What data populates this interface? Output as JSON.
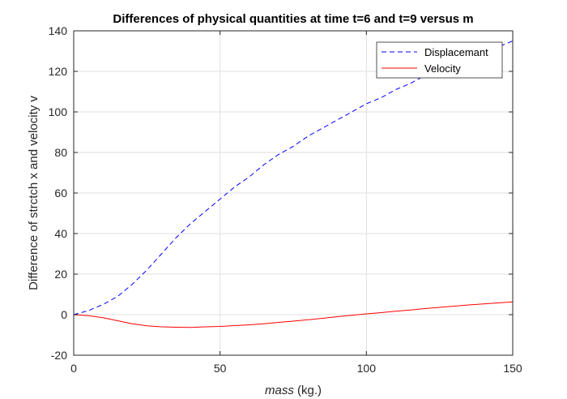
{
  "chart_data": {
    "type": "line",
    "title": "Differences of physical quantities at time t=6 and t=9 versus m",
    "xlabel_italic": "mass",
    "xlabel_rest": " (kg.)",
    "ylabel": "Difference of strctch x and velocity v",
    "xlim": [
      0,
      150
    ],
    "ylim": [
      -20,
      140
    ],
    "xticks": [
      0,
      50,
      100,
      150
    ],
    "yticks": [
      -20,
      0,
      20,
      40,
      60,
      80,
      100,
      120,
      140
    ],
    "xtick_labels": [
      "0",
      "50",
      "100",
      "150"
    ],
    "ytick_labels": [
      "-20",
      "0",
      "20",
      "40",
      "60",
      "80",
      "100",
      "120",
      "140"
    ],
    "grid": true,
    "legend_position": "top-right",
    "series": [
      {
        "name": "Displacemant",
        "color": "#0000ff",
        "style": "dashed",
        "x": [
          0,
          5,
          10,
          15,
          20,
          25,
          30,
          35,
          40,
          45,
          50,
          55,
          60,
          65,
          70,
          75,
          80,
          85,
          90,
          95,
          100,
          105,
          110,
          115,
          120,
          125,
          130,
          135,
          140,
          145,
          150
        ],
        "y": [
          0,
          2,
          5,
          9,
          15,
          22,
          30,
          38,
          45,
          51,
          57,
          63,
          68,
          74,
          79,
          83,
          88,
          92,
          96,
          100,
          104,
          107,
          111,
          114,
          118,
          121,
          124,
          127,
          130,
          132,
          135
        ]
      },
      {
        "name": "Velocity",
        "color": "#ff0000",
        "style": "solid",
        "x": [
          0,
          5,
          10,
          15,
          20,
          25,
          30,
          35,
          40,
          45,
          50,
          55,
          60,
          65,
          70,
          75,
          80,
          85,
          90,
          95,
          100,
          105,
          110,
          115,
          120,
          125,
          130,
          135,
          140,
          145,
          150
        ],
        "y": [
          0,
          -0.5,
          -1.5,
          -3,
          -4.5,
          -5.5,
          -6,
          -6.2,
          -6.3,
          -6,
          -5.8,
          -5.4,
          -5,
          -4.5,
          -3.8,
          -3.2,
          -2.5,
          -1.8,
          -1,
          -0.3,
          0.4,
          1,
          1.7,
          2.3,
          3,
          3.6,
          4.2,
          4.8,
          5.3,
          5.8,
          6.3
        ]
      }
    ]
  }
}
